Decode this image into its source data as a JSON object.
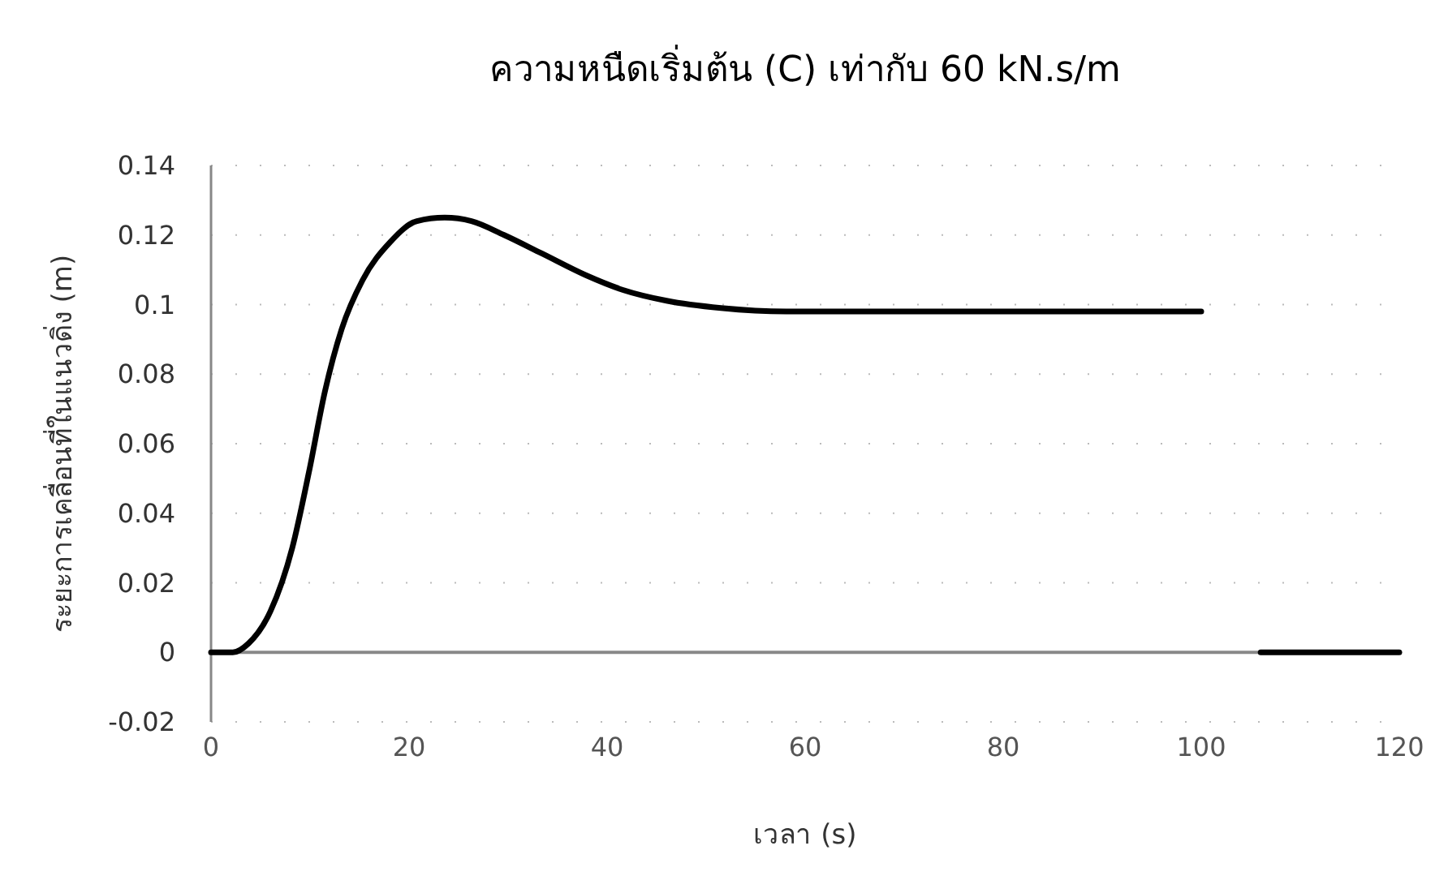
{
  "chart_data": {
    "type": "line",
    "title": "ความหนืดเริ่มต้น (C) เท่ากับ 60 kN.s/m",
    "xlabel": "เวลา (s)",
    "ylabel": "ระยะการเคลื่อนที่ในแนวดิ่ง (m)",
    "xlim": [
      0,
      120
    ],
    "xticks": [
      0,
      20,
      40,
      60,
      80,
      100,
      120
    ],
    "ylim": [
      -0.02,
      0.14
    ],
    "yticks": [
      -0.02,
      0,
      0.02,
      0.04,
      0.06,
      0.08,
      0.1,
      0.12,
      0.14
    ],
    "grid": "y",
    "marker": "none",
    "line_style": "solid",
    "series": [
      {
        "color": "#000000",
        "x": [
          0,
          2.2,
          3.8,
          6,
          8.2,
          9.9,
          11.5,
          13.2,
          15.3,
          18.1,
          20.8,
          23.6,
          26.3,
          29.6,
          33.4,
          37.8,
          41.6,
          46,
          51.5,
          58.1,
          70,
          85,
          100
        ],
        "values": [
          0,
          0,
          0.0026,
          0.0118,
          0.03,
          0.052,
          0.075,
          0.093,
          0.107,
          0.118,
          0.124,
          0.125,
          0.124,
          0.12,
          0.1147,
          0.1085,
          0.1042,
          0.1011,
          0.099,
          0.098,
          0.098,
          0.098,
          0.098
        ]
      },
      {
        "color": "#000000",
        "x": [
          106,
          120
        ],
        "values": [
          0,
          0
        ]
      }
    ]
  }
}
